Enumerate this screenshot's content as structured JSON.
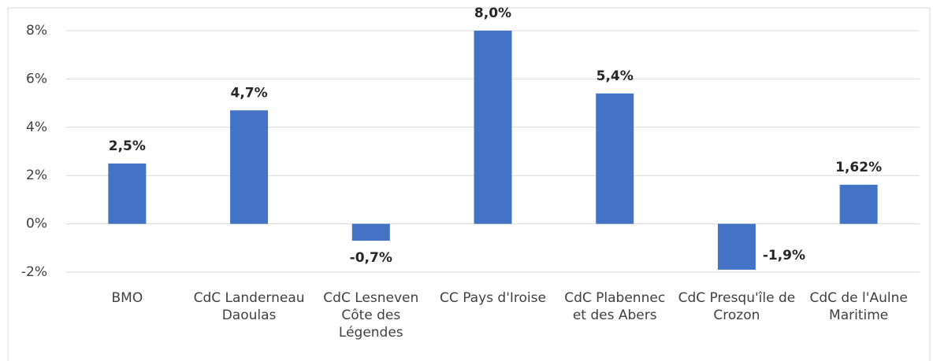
{
  "chart_data": {
    "type": "bar",
    "categories": [
      "BMO",
      "CdC Landerneau Daoulas",
      "CdC Lesneven Côte des Légendes",
      "CC Pays d'Iroise",
      "CdC Plabennec et des Abers",
      "CdC Presqu'île de Crozon",
      "CdC de l'Aulne Maritime"
    ],
    "values": [
      2.5,
      4.7,
      -0.7,
      8.0,
      5.4,
      -1.9,
      1.62
    ],
    "value_labels": [
      "2,5%",
      "4,7%",
      "-0,7%",
      "8,0%",
      "5,4%",
      "-1,9%",
      "1,62%"
    ],
    "color": "#4472c4",
    "ylim": [
      -2,
      8
    ],
    "yticks": [
      {
        "value": -2,
        "label": "-2%"
      },
      {
        "value": 0,
        "label": "0%"
      },
      {
        "value": 2,
        "label": "2%"
      },
      {
        "value": 4,
        "label": "4%"
      },
      {
        "value": 6,
        "label": "6%"
      },
      {
        "value": 8,
        "label": "8%"
      }
    ],
    "grid": true
  }
}
